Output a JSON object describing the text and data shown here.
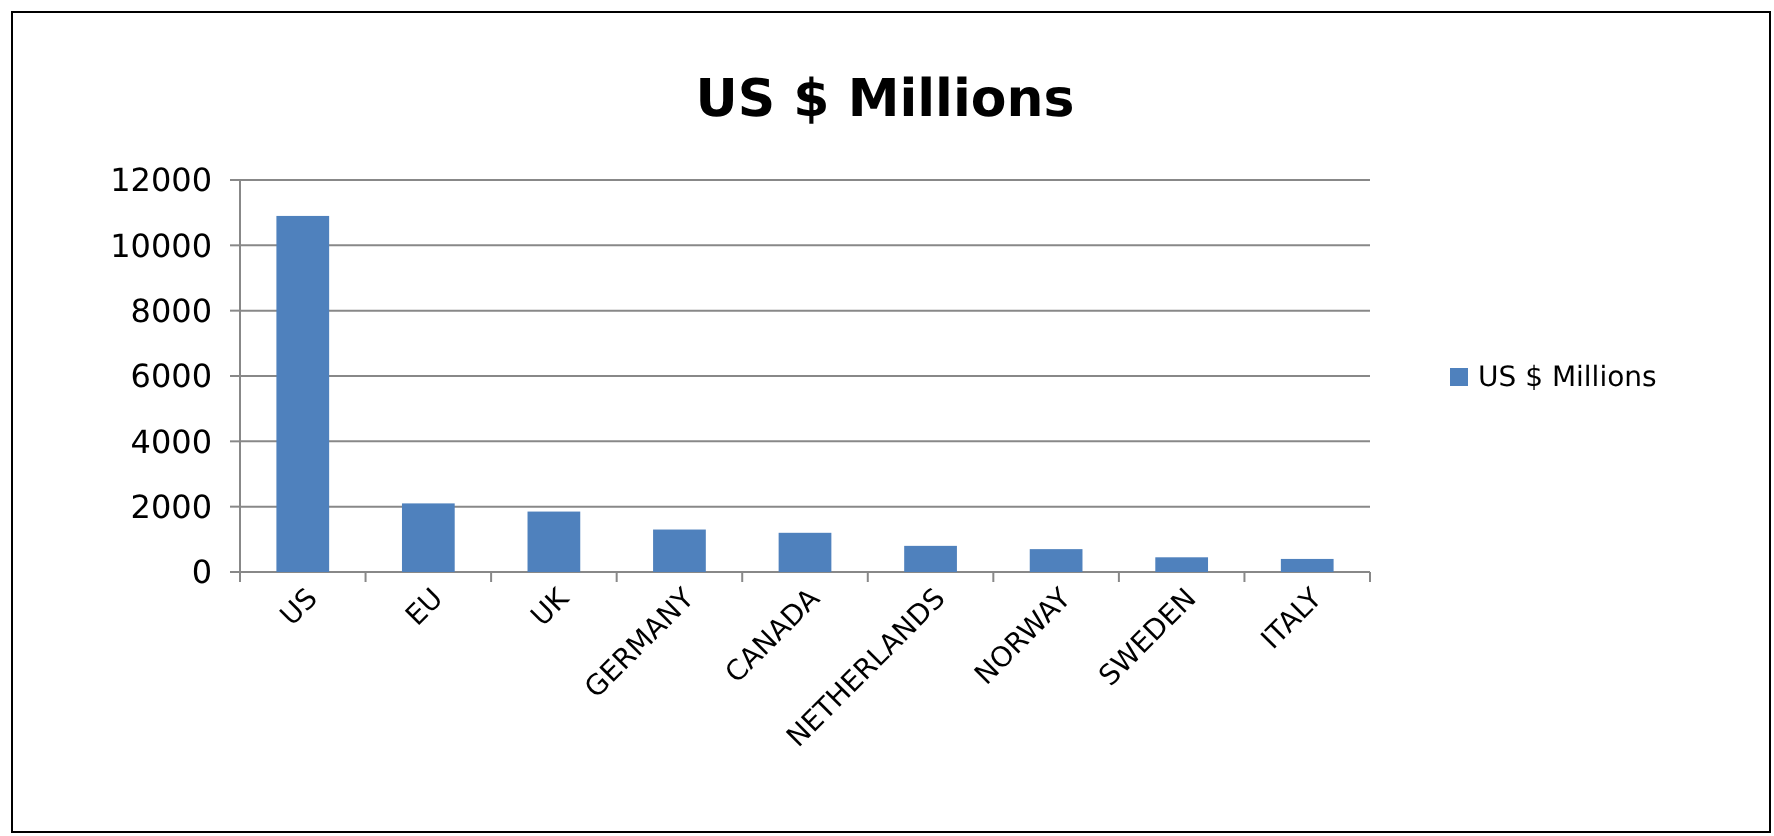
{
  "chart_data": {
    "type": "bar",
    "title": "US $ Millions",
    "categories": [
      "US",
      "EU",
      "UK",
      "GERMANY",
      "CANADA",
      "NETHERLANDS",
      "NORWAY",
      "SWEDEN",
      "ITALY"
    ],
    "series": [
      {
        "name": "US $ Millions",
        "color": "#4f81bd",
        "values": [
          10900,
          2100,
          1850,
          1300,
          1200,
          800,
          700,
          450,
          400
        ]
      }
    ],
    "ylim": [
      0,
      12000
    ],
    "yticks": [
      0,
      2000,
      4000,
      6000,
      8000,
      10000,
      12000
    ],
    "grid": "y",
    "legend": "right"
  }
}
